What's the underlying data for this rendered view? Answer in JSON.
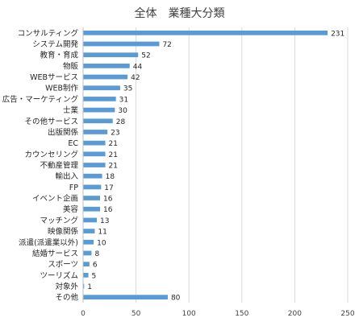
{
  "chart_data": {
    "type": "bar",
    "orientation": "horizontal",
    "title": "全体　業種大分類",
    "categories": [
      "コンサルティング",
      "システム開発",
      "教育・育成",
      "物販",
      "WEBサービス",
      "WEB制作",
      "広告・マーケティング",
      "士業",
      "その他サービス",
      "出版関係",
      "EC",
      "カウンセリング",
      "不動産管理",
      "輸出入",
      "FP",
      "イベント企画",
      "美容",
      "マッチング",
      "映像関係",
      "派遣(派遣業以外)",
      "結婚サービス",
      "スポーツ",
      "ツーリズム",
      "対象外",
      "その他"
    ],
    "values": [
      231,
      72,
      52,
      44,
      42,
      35,
      31,
      30,
      28,
      23,
      21,
      21,
      21,
      18,
      17,
      16,
      16,
      13,
      11,
      10,
      8,
      6,
      5,
      1,
      80
    ],
    "xlim": [
      0,
      250
    ],
    "xticks": [
      0,
      50,
      100,
      150,
      200,
      250
    ],
    "grid": true,
    "bar_color": "#5b9bd5",
    "grid_color": "#d9d9d9"
  }
}
